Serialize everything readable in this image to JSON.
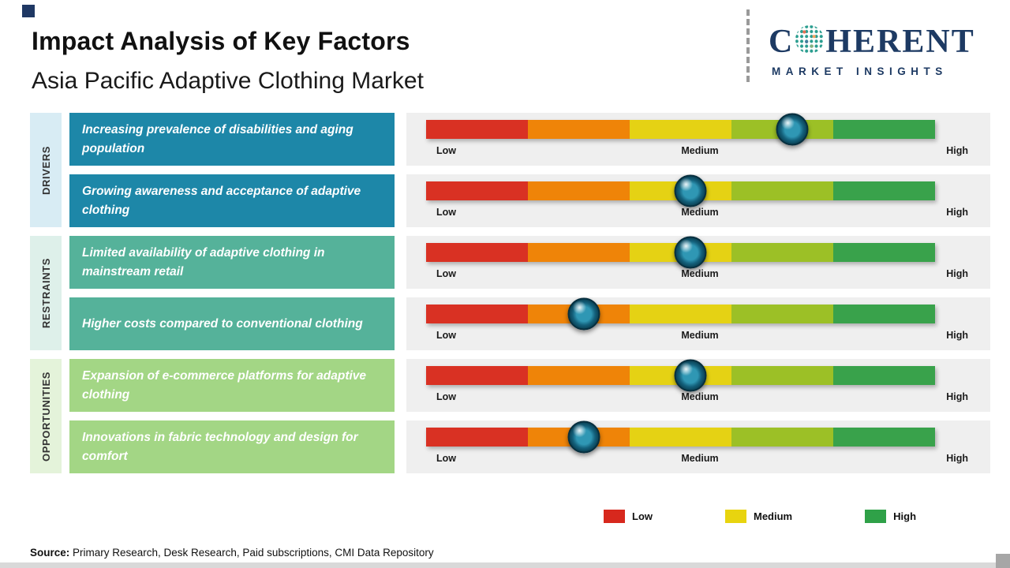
{
  "header": {
    "title": "Impact Analysis of Key Factors",
    "subtitle": "Asia Pacific Adaptive Clothing Market"
  },
  "logo": {
    "word_start": "C",
    "word_end": "HERENT",
    "tagline": "MARKET INSIGHTS"
  },
  "chart_data": {
    "type": "impact-sliders",
    "scale_labels": [
      "Low",
      "Medium",
      "High"
    ],
    "scale_range_pct": [
      0,
      100
    ],
    "bar_colors": [
      "#d93123",
      "#ef8408",
      "#e5d214",
      "#9cc026",
      "#39a24b"
    ],
    "groups": [
      {
        "label": "DRIVERS",
        "label_bg": "#d8ecf4",
        "box_color": "#1d87a8",
        "factors": [
          {
            "text": "Increasing prevalence of disabilities and aging population",
            "value_pct": 72
          },
          {
            "text": "Growing awareness and acceptance of adaptive clothing",
            "value_pct": 52
          }
        ]
      },
      {
        "label": "RESTRAINTS",
        "label_bg": "#def0ea",
        "box_color": "#55b29a",
        "factors": [
          {
            "text": "Limited availability of adaptive clothing in mainstream retail",
            "value_pct": 52
          },
          {
            "text": "Higher costs compared to conventional clothing",
            "value_pct": 31
          }
        ]
      },
      {
        "label": "OPPORTUNITIES",
        "label_bg": "#e4f3da",
        "box_color": "#a3d685",
        "factors": [
          {
            "text": "Expansion of e-commerce platforms for adaptive clothing",
            "value_pct": 52
          },
          {
            "text": "Innovations in fabric technology and design for comfort",
            "value_pct": 31
          }
        ]
      }
    ]
  },
  "legend": [
    {
      "label": "Low",
      "color": "#d7281d"
    },
    {
      "label": "Medium",
      "color": "#e8d40f"
    },
    {
      "label": "High",
      "color": "#2fa148"
    }
  ],
  "source": {
    "label": "Source:",
    "text": " Primary Research, Desk Research, Paid subscriptions, CMI Data Repository"
  }
}
